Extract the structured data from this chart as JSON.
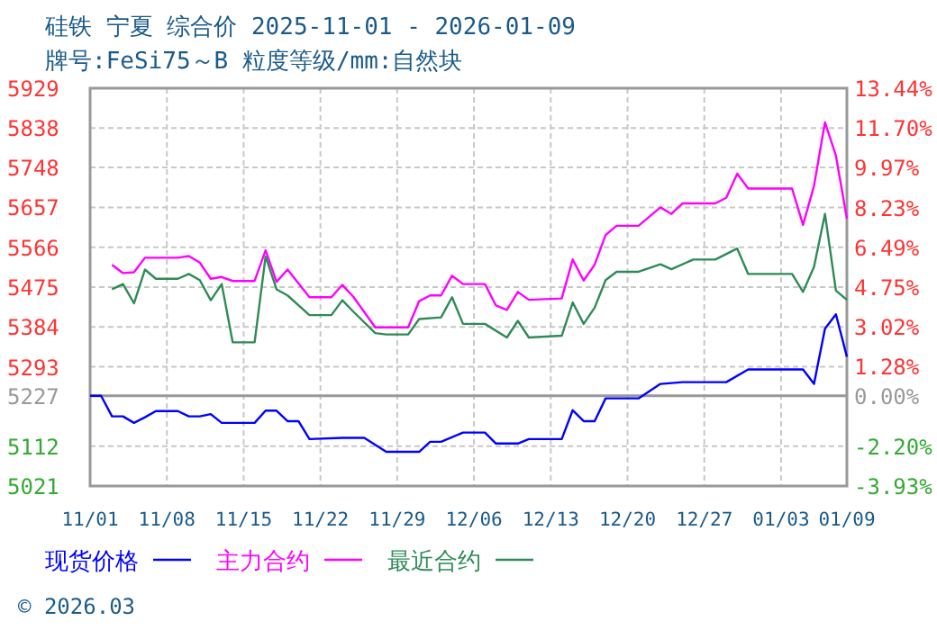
{
  "chart_data": {
    "type": "line",
    "title": "硅铁 宁夏 综合价 2025-11-01 - 2026-01-09",
    "subtitle": "牌号:FeSi75～B 粒度等级/mm:自然块",
    "xlim": [
      "2025-11-01",
      "2026-01-09"
    ],
    "xticks": [
      {
        "value": "2025-11-01",
        "label": "11/01"
      },
      {
        "value": "2025-11-08",
        "label": "11/08"
      },
      {
        "value": "2025-11-15",
        "label": "11/15"
      },
      {
        "value": "2025-11-22",
        "label": "11/22"
      },
      {
        "value": "2025-11-29",
        "label": "11/29"
      },
      {
        "value": "2025-12-06",
        "label": "12/06"
      },
      {
        "value": "2025-12-13",
        "label": "12/13"
      },
      {
        "value": "2025-12-20",
        "label": "12/20"
      },
      {
        "value": "2025-12-27",
        "label": "12/27"
      },
      {
        "value": "2026-01-03",
        "label": "01/03"
      },
      {
        "value": "2026-01-09",
        "label": "01/09"
      }
    ],
    "ylim": [
      5021,
      5929
    ],
    "yticks": [
      5021,
      5112,
      5227,
      5293,
      5384,
      5475,
      5566,
      5657,
      5748,
      5838,
      5929
    ],
    "y2lim": [
      -3.93,
      13.44
    ],
    "y2ticks": [
      {
        "value": -3.93,
        "label": "-3.93%"
      },
      {
        "value": -2.2,
        "label": "-2.20%"
      },
      {
        "value": 0,
        "label": "0.00%"
      },
      {
        "value": 1.28,
        "label": "1.28%"
      },
      {
        "value": 3.02,
        "label": "3.02%"
      },
      {
        "value": 4.75,
        "label": "4.75%"
      },
      {
        "value": 6.49,
        "label": "6.49%"
      },
      {
        "value": 8.23,
        "label": "8.23%"
      },
      {
        "value": 9.97,
        "label": "9.97%"
      },
      {
        "value": 11.7,
        "label": "11.70%"
      },
      {
        "value": 13.44,
        "label": "13.44%"
      }
    ],
    "grid": true,
    "legend": "bottom",
    "line_style": "solid",
    "ref_lines": [
      {
        "axis": "y",
        "value": 5227,
        "color": "#999999"
      }
    ],
    "annotations": [
      "© 2026.03"
    ],
    "series": [
      {
        "name": "现货价格",
        "color": "#0000ff",
        "x": [
          "2025-11-01",
          "2025-11-02",
          "2025-11-03",
          "2025-11-04",
          "2025-11-05",
          "2025-11-06",
          "2025-11-07",
          "2025-11-09",
          "2025-11-10",
          "2025-11-11",
          "2025-11-12",
          "2025-11-13",
          "2025-11-16",
          "2025-11-17",
          "2025-11-18",
          "2025-11-19",
          "2025-11-20",
          "2025-11-21",
          "2025-11-24",
          "2025-11-26",
          "2025-11-28",
          "2025-12-01",
          "2025-12-02",
          "2025-12-03",
          "2025-12-05",
          "2025-12-07",
          "2025-12-08",
          "2025-12-10",
          "2025-12-11",
          "2025-12-14",
          "2025-12-15",
          "2025-12-16",
          "2025-12-17",
          "2025-12-18",
          "2025-12-21",
          "2025-12-23",
          "2025-12-25",
          "2025-12-29",
          "2025-12-31",
          "2026-01-05",
          "2026-01-06",
          "2026-01-07",
          "2026-01-08",
          "2026-01-09"
        ],
        "values": [
          5227,
          5227,
          5180,
          5180,
          5165,
          5178,
          5192,
          5192,
          5180,
          5180,
          5185,
          5165,
          5165,
          5193,
          5193,
          5169,
          5169,
          5128,
          5131,
          5131,
          5099,
          5099,
          5122,
          5122,
          5143,
          5143,
          5118,
          5118,
          5128,
          5128,
          5194,
          5169,
          5169,
          5221,
          5221,
          5254,
          5258,
          5258,
          5287,
          5287,
          5254,
          5380,
          5413,
          5316
        ]
      },
      {
        "name": "主力合约",
        "color": "#ff00ff",
        "x": [
          "2025-11-03",
          "2025-11-04",
          "2025-11-05",
          "2025-11-06",
          "2025-11-09",
          "2025-11-10",
          "2025-11-11",
          "2025-11-12",
          "2025-11-13",
          "2025-11-14",
          "2025-11-16",
          "2025-11-17",
          "2025-11-18",
          "2025-11-19",
          "2025-11-21",
          "2025-11-23",
          "2025-11-24",
          "2025-11-25",
          "2025-11-27",
          "2025-11-30",
          "2025-12-01",
          "2025-12-02",
          "2025-12-03",
          "2025-12-04",
          "2025-12-05",
          "2025-12-07",
          "2025-12-08",
          "2025-12-09",
          "2025-12-10",
          "2025-12-11",
          "2025-12-14",
          "2025-12-15",
          "2025-12-16",
          "2025-12-17",
          "2025-12-18",
          "2025-12-19",
          "2025-12-21",
          "2025-12-23",
          "2025-12-24",
          "2025-12-25",
          "2025-12-28",
          "2025-12-29",
          "2025-12-30",
          "2025-12-31",
          "2026-01-04",
          "2026-01-05",
          "2026-01-06",
          "2026-01-07",
          "2026-01-08",
          "2026-01-09"
        ],
        "values": [
          5526,
          5507,
          5509,
          5542,
          5542,
          5546,
          5531,
          5494,
          5498,
          5489,
          5489,
          5559,
          5487,
          5515,
          5452,
          5452,
          5480,
          5453,
          5383,
          5383,
          5443,
          5456,
          5456,
          5501,
          5482,
          5482,
          5433,
          5423,
          5464,
          5446,
          5449,
          5538,
          5490,
          5526,
          5594,
          5615,
          5615,
          5657,
          5642,
          5666,
          5666,
          5679,
          5734,
          5700,
          5700,
          5617,
          5706,
          5851,
          5775,
          5631
        ]
      },
      {
        "name": "最近合约",
        "color": "#2e8b57",
        "x": [
          "2025-11-03",
          "2025-11-04",
          "2025-11-05",
          "2025-11-06",
          "2025-11-07",
          "2025-11-09",
          "2025-11-10",
          "2025-11-11",
          "2025-11-12",
          "2025-11-13",
          "2025-11-14",
          "2025-11-16",
          "2025-11-17",
          "2025-11-18",
          "2025-11-19",
          "2025-11-21",
          "2025-11-23",
          "2025-11-24",
          "2025-11-25",
          "2025-11-27",
          "2025-11-28",
          "2025-11-30",
          "2025-12-01",
          "2025-12-03",
          "2025-12-04",
          "2025-12-05",
          "2025-12-07",
          "2025-12-09",
          "2025-12-10",
          "2025-12-11",
          "2025-12-14",
          "2025-12-15",
          "2025-12-16",
          "2025-12-17",
          "2025-12-18",
          "2025-12-19",
          "2025-12-21",
          "2025-12-23",
          "2025-12-24",
          "2025-12-26",
          "2025-12-28",
          "2025-12-30",
          "2025-12-31",
          "2026-01-04",
          "2026-01-05",
          "2026-01-06",
          "2026-01-07",
          "2026-01-08",
          "2026-01-09"
        ],
        "values": [
          5470,
          5482,
          5438,
          5515,
          5494,
          5494,
          5505,
          5491,
          5445,
          5482,
          5349,
          5349,
          5545,
          5470,
          5456,
          5411,
          5411,
          5445,
          5419,
          5370,
          5367,
          5367,
          5402,
          5406,
          5452,
          5391,
          5391,
          5360,
          5398,
          5360,
          5364,
          5440,
          5391,
          5428,
          5491,
          5510,
          5510,
          5527,
          5516,
          5538,
          5538,
          5563,
          5505,
          5505,
          5464,
          5521,
          5642,
          5467,
          5446
        ]
      }
    ]
  }
}
